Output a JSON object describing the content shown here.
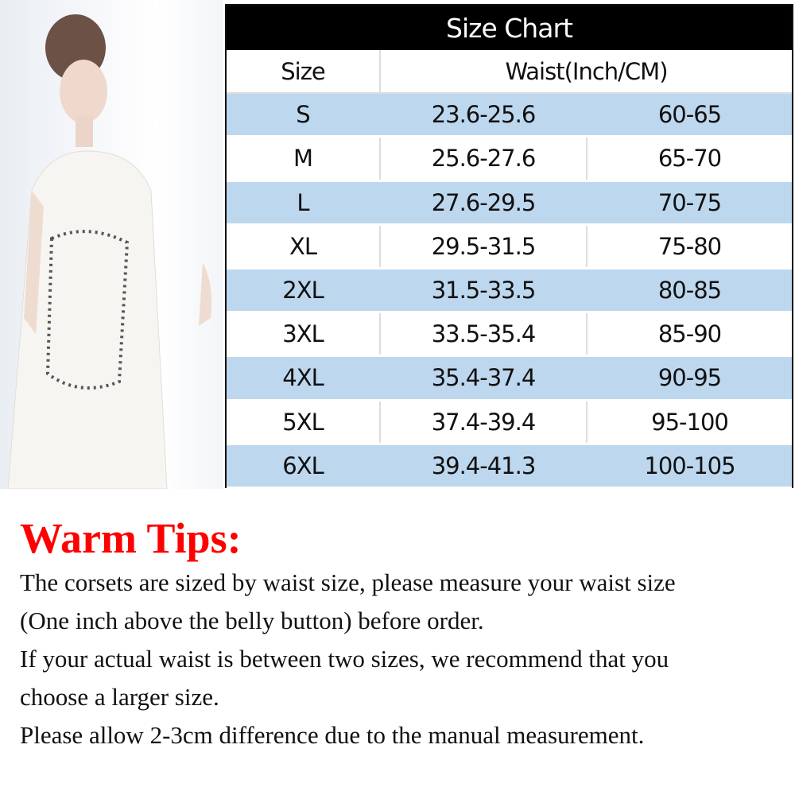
{
  "table": {
    "title": "Size Chart",
    "headers": {
      "size": "Size",
      "waist": "Waist(Inch/CM)"
    },
    "rows": [
      {
        "size": "S",
        "inch": "23.6-25.6",
        "cm": "60-65"
      },
      {
        "size": "M",
        "inch": "25.6-27.6",
        "cm": "65-70"
      },
      {
        "size": "L",
        "inch": "27.6-29.5",
        "cm": "70-75"
      },
      {
        "size": "XL",
        "inch": "29.5-31.5",
        "cm": "75-80"
      },
      {
        "size": "2XL",
        "inch": "31.5-33.5",
        "cm": "80-85"
      },
      {
        "size": "3XL",
        "inch": "33.5-35.4",
        "cm": "85-90"
      },
      {
        "size": "4XL",
        "inch": "35.4-37.4",
        "cm": "90-95"
      },
      {
        "size": "5XL",
        "inch": "37.4-39.4",
        "cm": "95-100"
      },
      {
        "size": "6XL",
        "inch": "39.4-41.3",
        "cm": "100-105"
      }
    ],
    "row_color": "#bdd7ee"
  },
  "tips": {
    "heading": "Warm Tips:",
    "heading_color": "#ff0000",
    "lines": [
      "The corsets are sized by waist size, please measure your waist size",
      "(One inch above the belly button) before order.",
      "If your actual waist is between two sizes, we recommend that you",
      "choose a larger size.",
      "Please allow 2-3cm difference due to the manual measurement."
    ]
  }
}
